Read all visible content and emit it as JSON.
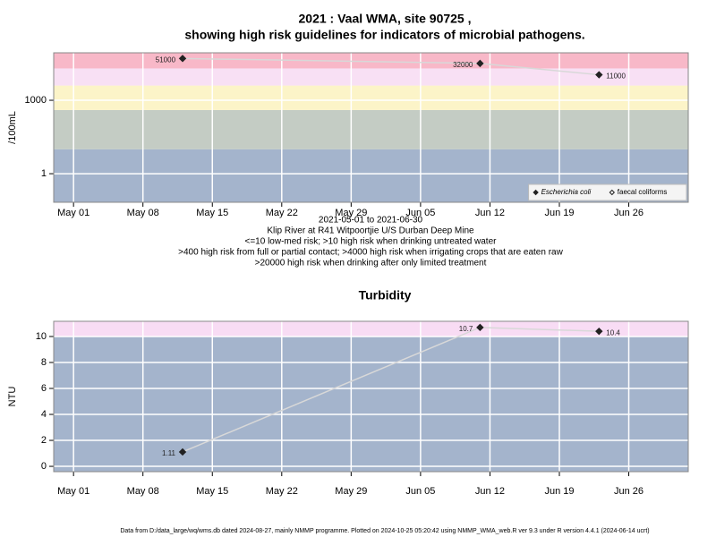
{
  "chart_data": [
    {
      "type": "scatter-line",
      "title": [
        "2021 : Vaal WMA, site 90725 ,",
        "showing high risk guidelines for indicators of microbial pathogens."
      ],
      "notes": [
        "2021-05-01 to 2021-06-30",
        "Klip River at R41 Witpoortjie U/S Durban Deep Mine",
        "<=10 low-med risk; >10 high risk when drinking untreated water",
        ">400 high risk from full or partial contact; >4000 high risk when irrigating crops that are eaten raw",
        ">20000 high risk when drinking after only limited treatment"
      ],
      "y_label": "/100mL",
      "log_y": true,
      "x": [
        "May 12",
        "Jun 11",
        "Jun 23"
      ],
      "series": [
        {
          "name": "Escherichia coli",
          "marker": "filled",
          "color": "#222222",
          "values": [
            51000,
            32000,
            11000
          ]
        },
        {
          "name": "faecal coliforms",
          "marker": "open",
          "color": "#222222",
          "values": [
            null,
            null,
            null
          ]
        }
      ],
      "line_color": "#d8d8d8",
      "xlim": [
        "Apr 29",
        "Jul 02"
      ],
      "xticks": [
        "May 01",
        "May 08",
        "May 15",
        "May 22",
        "May 29",
        "Jun 05",
        "Jun 12",
        "Jun 19",
        "Jun 26"
      ],
      "ylim": [
        0.068,
        87000
      ],
      "yticks": [
        1,
        1000
      ],
      "thresholds": [
        10,
        400,
        4000,
        20000
      ],
      "band_colors": [
        "#a4b4cc",
        "#c4ccc4",
        "#fcf4c8",
        "#f8e0f4",
        "#f8b8c8"
      ],
      "grid": true,
      "legend": "bottom-right"
    },
    {
      "type": "scatter-line",
      "title": [
        "Turbidity"
      ],
      "y_label": "NTU",
      "log_y": false,
      "x": [
        "May 12",
        "Jun 11",
        "Jun 23"
      ],
      "series": [
        {
          "marker": "filled",
          "color": "#222222",
          "values": [
            1.11,
            10.7,
            10.4
          ]
        }
      ],
      "line_color": "#d8d8d8",
      "xlim": [
        "Apr 29",
        "Jul 02"
      ],
      "xticks": [
        "May 01",
        "May 08",
        "May 15",
        "May 22",
        "May 29",
        "Jun 05",
        "Jun 12",
        "Jun 19",
        "Jun 26"
      ],
      "ylim": [
        -0.41,
        11.17
      ],
      "yticks": [
        0,
        2,
        4,
        6,
        8,
        10
      ],
      "thresholds": [
        10
      ],
      "band_colors": [
        "#a4b4cc",
        "#f8dcf4"
      ],
      "grid": true
    }
  ],
  "footer": "Data from D:/data_large/wq/wms.db dated 2024-08-27, mainly NMMP programme. Plotted on 2024-10-25 05:20:42 using NMMP_WMA_web.R ver 9.3 under R version 4.4.1 (2024-06-14 ucrt)"
}
